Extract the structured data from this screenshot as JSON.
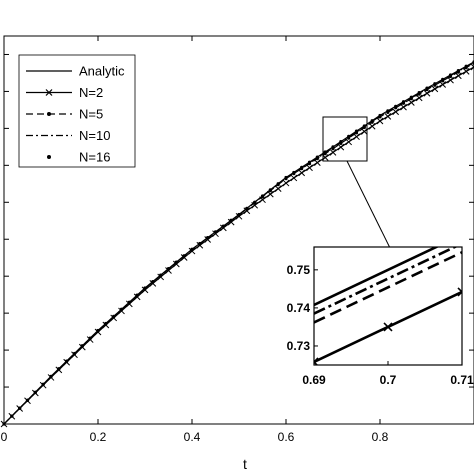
{
  "chart_data": [
    {
      "type": "line",
      "title": "",
      "xlabel": "t",
      "ylabel": "",
      "xlim": [
        0,
        1
      ],
      "ylim": [
        0,
        1.05
      ],
      "xticks": [
        0,
        0.2,
        0.4,
        0.6,
        0.8
      ],
      "xtick_labels": [
        "0",
        "0.2",
        "0.4",
        "0.6",
        "0.8"
      ],
      "grid": false,
      "legend_position": "top-left",
      "series": [
        {
          "name": "Analytic",
          "style": "solid",
          "marker": "none",
          "x": [
            0,
            0.1,
            0.2,
            0.3,
            0.4,
            0.5,
            0.6,
            0.7,
            0.8,
            0.9,
            1.0
          ],
          "y": [
            0,
            0.129,
            0.253,
            0.368,
            0.473,
            0.567,
            0.667,
            0.75,
            0.835,
            0.909,
            0.98
          ]
        },
        {
          "name": "N=2",
          "style": "solid",
          "marker": "x",
          "x": [
            0,
            0.1,
            0.2,
            0.3,
            0.4,
            0.5,
            0.6,
            0.7,
            0.8,
            0.9,
            1.0
          ],
          "y": [
            0,
            0.126,
            0.249,
            0.363,
            0.468,
            0.562,
            0.652,
            0.735,
            0.82,
            0.895,
            0.966
          ]
        },
        {
          "name": "N=5",
          "style": "dashed",
          "marker": "dot",
          "x": [
            0,
            0.1,
            0.2,
            0.3,
            0.4,
            0.5,
            0.6,
            0.7,
            0.8,
            0.9,
            1.0
          ],
          "y": [
            0,
            0.128,
            0.252,
            0.367,
            0.472,
            0.566,
            0.664,
            0.745,
            0.831,
            0.905,
            0.976
          ]
        },
        {
          "name": "N=10",
          "style": "dash-dot",
          "marker": "none",
          "x": [
            0,
            0.1,
            0.2,
            0.3,
            0.4,
            0.5,
            0.6,
            0.7,
            0.8,
            0.9,
            1.0
          ],
          "y": [
            0,
            0.1285,
            0.2525,
            0.3675,
            0.4725,
            0.5665,
            0.6655,
            0.747,
            0.833,
            0.907,
            0.978
          ]
        },
        {
          "name": "N=16",
          "style": "none",
          "marker": "dot",
          "x": [
            0,
            0.1,
            0.2,
            0.3,
            0.4,
            0.5,
            0.6,
            0.7,
            0.8,
            0.9,
            1.0
          ],
          "y": [
            0,
            0.129,
            0.253,
            0.368,
            0.473,
            0.567,
            0.667,
            0.75,
            0.835,
            0.909,
            0.98
          ]
        }
      ]
    },
    {
      "type": "line",
      "title": "",
      "xlim": [
        0.69,
        0.71
      ],
      "ylim": [
        0.725,
        0.756
      ],
      "xticks": [
        0.69,
        0.7,
        0.71
      ],
      "xtick_labels": [
        "0.69",
        "0.7",
        "0.71"
      ],
      "yticks": [
        0.73,
        0.74,
        0.75
      ],
      "ytick_labels": [
        "0.73",
        "0.74",
        "0.75"
      ],
      "grid": false,
      "series": [
        {
          "name": "Analytic",
          "style": "solid",
          "marker": "none",
          "x": [
            0.69,
            0.71
          ],
          "y": [
            0.7408,
            0.7592
          ]
        },
        {
          "name": "N=2",
          "style": "solid",
          "marker": "x",
          "x": [
            0.69,
            0.7,
            0.71
          ],
          "y": [
            0.7258,
            0.735,
            0.7442
          ]
        },
        {
          "name": "N=5",
          "style": "dashed",
          "marker": "none",
          "x": [
            0.69,
            0.71
          ],
          "y": [
            0.7362,
            0.7546
          ]
        },
        {
          "name": "N=10",
          "style": "dash-dot",
          "marker": "none",
          "x": [
            0.69,
            0.71
          ],
          "y": [
            0.7385,
            0.7569
          ]
        }
      ]
    }
  ]
}
